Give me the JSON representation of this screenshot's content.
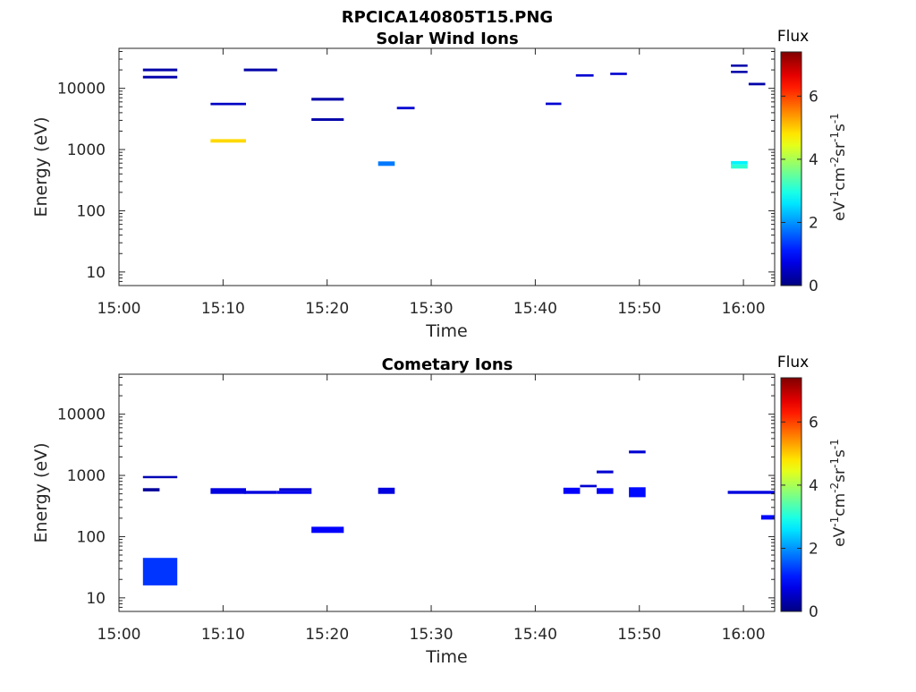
{
  "figure": {
    "title": "RPCICA140805T15.PNG"
  },
  "colorbar": {
    "label": "Flux",
    "unit_base": "eV",
    "unit_exp1": "-1",
    "unit_cm": "cm",
    "unit_exp2": "-2",
    "unit_sr": "sr",
    "unit_exp3": "-1",
    "unit_s": "s",
    "unit_exp4": "-1",
    "range": [
      0,
      7.4
    ],
    "ticks": [
      "0",
      "2",
      "4",
      "6"
    ],
    "colormap": "jet"
  },
  "chart_data": [
    {
      "type": "heatmap",
      "title": "Solar Wind Ions",
      "xlabel": "Time",
      "ylabel": "Energy (eV)",
      "x_ticks": [
        "15:00",
        "15:10",
        "15:20",
        "15:30",
        "15:40",
        "15:50",
        "16:00"
      ],
      "y_ticks": [
        "10",
        "100",
        "1000",
        "10000"
      ],
      "y_scale": "log",
      "x_range_min": [
        0,
        63
      ],
      "y_range": [
        6,
        45000
      ],
      "segments": [
        {
          "t0": 2.3,
          "t1": 5.6,
          "e0": 19000,
          "e1": 21000,
          "flux": 0.3
        },
        {
          "t0": 2.3,
          "t1": 5.6,
          "e0": 14500,
          "e1": 16000,
          "flux": 0.3
        },
        {
          "t0": 8.8,
          "t1": 12.2,
          "e0": 5300,
          "e1": 5800,
          "flux": 0.5
        },
        {
          "t0": 8.8,
          "t1": 12.2,
          "e0": 1300,
          "e1": 1480,
          "flux": 4.9
        },
        {
          "t0": 12.0,
          "t1": 15.2,
          "e0": 19000,
          "e1": 21000,
          "flux": 0.3
        },
        {
          "t0": 18.5,
          "t1": 21.6,
          "e0": 6300,
          "e1": 7000,
          "flux": 0.3
        },
        {
          "t0": 18.5,
          "t1": 21.6,
          "e0": 2950,
          "e1": 3250,
          "flux": 0.3
        },
        {
          "t0": 24.9,
          "t1": 26.5,
          "e0": 540,
          "e1": 640,
          "flux": 1.8
        },
        {
          "t0": 26.7,
          "t1": 28.4,
          "e0": 4550,
          "e1": 5000,
          "flux": 0.6
        },
        {
          "t0": 41.0,
          "t1": 42.5,
          "e0": 5350,
          "e1": 5850,
          "flux": 0.6
        },
        {
          "t0": 43.9,
          "t1": 45.6,
          "e0": 15500,
          "e1": 17000,
          "flux": 0.6
        },
        {
          "t0": 47.2,
          "t1": 48.8,
          "e0": 16500,
          "e1": 18000,
          "flux": 0.6
        },
        {
          "t0": 58.8,
          "t1": 60.4,
          "e0": 22500,
          "e1": 24500,
          "flux": 0.3
        },
        {
          "t0": 58.8,
          "t1": 60.4,
          "e0": 17800,
          "e1": 19300,
          "flux": 0.3
        },
        {
          "t0": 58.8,
          "t1": 60.4,
          "e0": 570,
          "e1": 650,
          "flux": 2.7
        },
        {
          "t0": 58.8,
          "t1": 60.4,
          "e0": 490,
          "e1": 570,
          "flux": 3.1
        },
        {
          "t0": 60.5,
          "t1": 62.1,
          "e0": 11200,
          "e1": 12300,
          "flux": 0.3
        }
      ]
    },
    {
      "type": "heatmap",
      "title": "Cometary Ions",
      "xlabel": "Time",
      "ylabel": "Energy (eV)",
      "x_ticks": [
        "15:00",
        "15:10",
        "15:20",
        "15:30",
        "15:40",
        "15:50",
        "16:00"
      ],
      "y_ticks": [
        "10",
        "100",
        "1000",
        "10000"
      ],
      "y_scale": "log",
      "x_range_min": [
        0,
        63
      ],
      "y_range": [
        6,
        45000
      ],
      "segments": [
        {
          "t0": 2.3,
          "t1": 5.6,
          "e0": 900,
          "e1": 980,
          "flux": 0.4
        },
        {
          "t0": 2.3,
          "t1": 3.9,
          "e0": 550,
          "e1": 620,
          "flux": 0.2
        },
        {
          "t0": 2.3,
          "t1": 5.6,
          "e0": 16,
          "e1": 45,
          "flux": 1.3
        },
        {
          "t0": 8.8,
          "t1": 12.2,
          "e0": 500,
          "e1": 620,
          "flux": 0.7
        },
        {
          "t0": 12.0,
          "t1": 15.2,
          "e0": 500,
          "e1": 560,
          "flux": 0.7
        },
        {
          "t0": 15.4,
          "t1": 18.5,
          "e0": 560,
          "e1": 620,
          "flux": 0.6
        },
        {
          "t0": 15.2,
          "t1": 18.5,
          "e0": 500,
          "e1": 560,
          "flux": 0.8
        },
        {
          "t0": 18.5,
          "t1": 21.6,
          "e0": 115,
          "e1": 145,
          "flux": 0.9
        },
        {
          "t0": 24.9,
          "t1": 26.5,
          "e0": 500,
          "e1": 630,
          "flux": 0.7
        },
        {
          "t0": 42.7,
          "t1": 44.3,
          "e0": 500,
          "e1": 630,
          "flux": 0.9
        },
        {
          "t0": 44.3,
          "t1": 45.9,
          "e0": 640,
          "e1": 700,
          "flux": 0.6
        },
        {
          "t0": 45.9,
          "t1": 47.5,
          "e0": 500,
          "e1": 620,
          "flux": 0.9
        },
        {
          "t0": 45.9,
          "t1": 47.5,
          "e0": 1080,
          "e1": 1200,
          "flux": 0.6
        },
        {
          "t0": 49.0,
          "t1": 50.6,
          "e0": 440,
          "e1": 640,
          "flux": 1.0
        },
        {
          "t0": 49.0,
          "t1": 50.6,
          "e0": 2300,
          "e1": 2550,
          "flux": 0.6
        },
        {
          "t0": 58.5,
          "t1": 63.0,
          "e0": 500,
          "e1": 560,
          "flux": 0.7
        },
        {
          "t0": 61.7,
          "t1": 63.0,
          "e0": 190,
          "e1": 225,
          "flux": 1.0
        }
      ]
    }
  ]
}
